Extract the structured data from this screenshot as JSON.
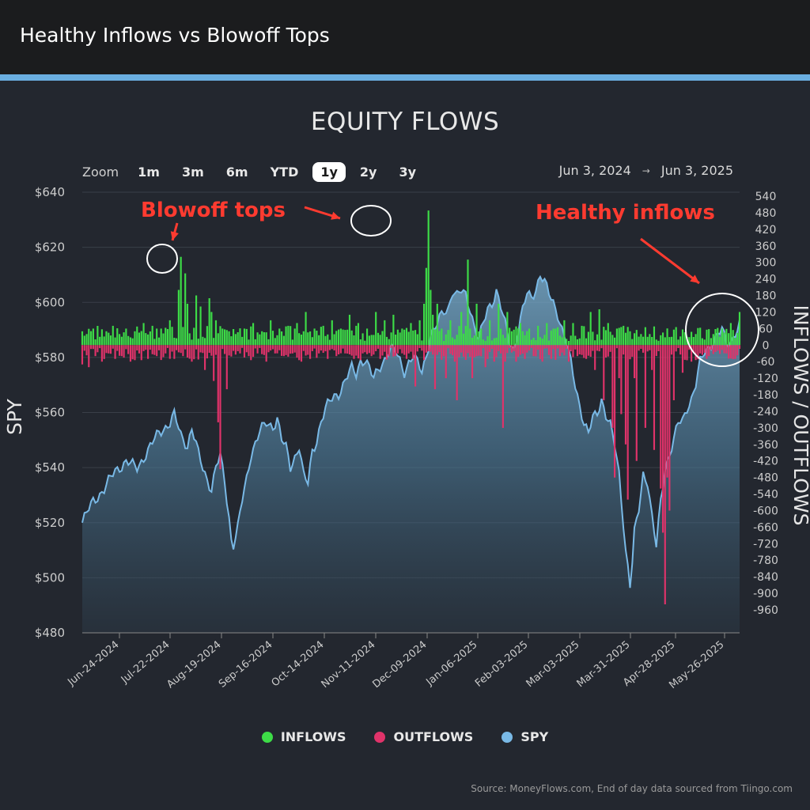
{
  "header": {
    "title": "Healthy Inflows vs Blowoff Tops"
  },
  "colors": {
    "accent": "#6aaee0",
    "inflow": "#3ddc47",
    "outflow": "#e0336a",
    "spy": "#79b9e6",
    "annotation": "#ff3b30"
  },
  "zoom": {
    "label": "Zoom",
    "buttons": [
      {
        "label": "1m",
        "active": false
      },
      {
        "label": "3m",
        "active": false
      },
      {
        "label": "6m",
        "active": false
      },
      {
        "label": "YTD",
        "active": false
      },
      {
        "label": "1y",
        "active": true
      },
      {
        "label": "2y",
        "active": false
      },
      {
        "label": "3y",
        "active": false
      }
    ]
  },
  "range": {
    "from": "Jun 3, 2024",
    "arrow": "→",
    "to": "Jun 3, 2025"
  },
  "legend": {
    "inflows": "INFLOWS",
    "outflows": "OUTFLOWS",
    "spy": "SPY"
  },
  "source": "Source: MoneyFlows.com, End of day data sourced from Tiingo.com",
  "chart_data": {
    "type": "bar",
    "title": "EQUITY FLOWS",
    "ylabel": "SPY",
    "y2label": "INFLOWS / OUTFLOWS",
    "ylim": [
      480,
      640
    ],
    "y2lim": [
      -960,
      540
    ],
    "yticks": [
      "$640",
      "$620",
      "$600",
      "$580",
      "$560",
      "$540",
      "$520",
      "$500",
      "$480"
    ],
    "y2ticks": [
      "540",
      "480",
      "420",
      "360",
      "300",
      "240",
      "180",
      "120",
      "60",
      "0",
      "-60",
      "-120",
      "-180",
      "-240",
      "-300",
      "-360",
      "-420",
      "-480",
      "-540",
      "-600",
      "-660",
      "-720",
      "-780",
      "-840",
      "-900",
      "-960"
    ],
    "xticks": [
      "Jun-24-2024",
      "Jul-22-2024",
      "Aug-19-2024",
      "Sep-16-2024",
      "Oct-14-2024",
      "Nov-11-2024",
      "Dec-09-2024",
      "Jan-06-2025",
      "Feb-03-2025",
      "Mar-03-2025",
      "Mar-31-2025",
      "Apr-28-2025",
      "May-26-2025"
    ],
    "spy_keypoints": [
      [
        0,
        520
      ],
      [
        5,
        528
      ],
      [
        10,
        532
      ],
      [
        15,
        539
      ],
      [
        20,
        542
      ],
      [
        25,
        540
      ],
      [
        30,
        546
      ],
      [
        35,
        553
      ],
      [
        40,
        556
      ],
      [
        42,
        559
      ],
      [
        45,
        552
      ],
      [
        48,
        548
      ],
      [
        50,
        554
      ],
      [
        53,
        545
      ],
      [
        55,
        540
      ],
      [
        57,
        536
      ],
      [
        59,
        532
      ],
      [
        61,
        540
      ],
      [
        63,
        544
      ],
      [
        65,
        535
      ],
      [
        67,
        522
      ],
      [
        68,
        514
      ],
      [
        69,
        512
      ],
      [
        71,
        518
      ],
      [
        73,
        528
      ],
      [
        75,
        536
      ],
      [
        77,
        545
      ],
      [
        79,
        549
      ],
      [
        81,
        553
      ],
      [
        84,
        556
      ],
      [
        87,
        555
      ],
      [
        89,
        558
      ],
      [
        91,
        550
      ],
      [
        93,
        547
      ],
      [
        95,
        540
      ],
      [
        97,
        544
      ],
      [
        99,
        548
      ],
      [
        101,
        537
      ],
      [
        103,
        534
      ],
      [
        105,
        546
      ],
      [
        107,
        550
      ],
      [
        109,
        557
      ],
      [
        111,
        561
      ],
      [
        113,
        564
      ],
      [
        115,
        566
      ],
      [
        117,
        567
      ],
      [
        119,
        570
      ],
      [
        121,
        573
      ],
      [
        123,
        576
      ],
      [
        125,
        574
      ],
      [
        127,
        579
      ],
      [
        129,
        579
      ],
      [
        131,
        576
      ],
      [
        133,
        572
      ],
      [
        135,
        576
      ],
      [
        137,
        578
      ],
      [
        139,
        581
      ],
      [
        141,
        583
      ],
      [
        143,
        582
      ],
      [
        145,
        579
      ],
      [
        147,
        575
      ],
      [
        149,
        578
      ],
      [
        151,
        580
      ],
      [
        153,
        578
      ],
      [
        155,
        575
      ],
      [
        157,
        581
      ],
      [
        159,
        588
      ],
      [
        161,
        590
      ],
      [
        163,
        594
      ],
      [
        165,
        597
      ],
      [
        167,
        598
      ],
      [
        169,
        604
      ],
      [
        171,
        602
      ],
      [
        173,
        604
      ],
      [
        175,
        603
      ],
      [
        177,
        598
      ],
      [
        179,
        591
      ],
      [
        181,
        586
      ],
      [
        183,
        592
      ],
      [
        185,
        598
      ],
      [
        187,
        600
      ],
      [
        189,
        604
      ],
      [
        191,
        598
      ],
      [
        193,
        592
      ],
      [
        195,
        586
      ],
      [
        197,
        583
      ],
      [
        199,
        590
      ],
      [
        201,
        597
      ],
      [
        203,
        603
      ],
      [
        205,
        602
      ],
      [
        207,
        605
      ],
      [
        209,
        610
      ],
      [
        211,
        607
      ],
      [
        213,
        603
      ],
      [
        215,
        600
      ],
      [
        217,
        596
      ],
      [
        219,
        590
      ],
      [
        221,
        585
      ],
      [
        223,
        578
      ],
      [
        225,
        570
      ],
      [
        227,
        563
      ],
      [
        229,
        556
      ],
      [
        231,
        552
      ],
      [
        233,
        558
      ],
      [
        235,
        560
      ],
      [
        237,
        565
      ],
      [
        239,
        559
      ],
      [
        241,
        555
      ],
      [
        243,
        548
      ],
      [
        245,
        538
      ],
      [
        247,
        520
      ],
      [
        248,
        510
      ],
      [
        249,
        504
      ],
      [
        250,
        497
      ],
      [
        251,
        505
      ],
      [
        252,
        516
      ],
      [
        254,
        525
      ],
      [
        256,
        538
      ],
      [
        258,
        535
      ],
      [
        260,
        522
      ],
      [
        262,
        511
      ],
      [
        264,
        528
      ],
      [
        266,
        540
      ],
      [
        268,
        545
      ],
      [
        270,
        550
      ],
      [
        272,
        556
      ],
      [
        274,
        557
      ],
      [
        276,
        562
      ],
      [
        278,
        565
      ],
      [
        280,
        570
      ],
      [
        282,
        578
      ],
      [
        284,
        582
      ],
      [
        286,
        584
      ],
      [
        288,
        586
      ],
      [
        290,
        588
      ],
      [
        292,
        590
      ],
      [
        294,
        585
      ],
      [
        296,
        586
      ],
      [
        298,
        589
      ],
      [
        300,
        592
      ]
    ],
    "flow_keypoints": [
      [
        0,
        50
      ],
      [
        0,
        -70
      ],
      [
        2,
        40
      ],
      [
        3,
        -80
      ],
      [
        5,
        60
      ],
      [
        6,
        -40
      ],
      [
        8,
        30
      ],
      [
        9,
        -60
      ],
      [
        11,
        50
      ],
      [
        12,
        -30
      ],
      [
        14,
        70
      ],
      [
        15,
        -50
      ],
      [
        17,
        40
      ],
      [
        18,
        -40
      ],
      [
        20,
        60
      ],
      [
        22,
        -60
      ],
      [
        24,
        50
      ],
      [
        26,
        -30
      ],
      [
        28,
        80
      ],
      [
        30,
        -50
      ],
      [
        32,
        70
      ],
      [
        34,
        -40
      ],
      [
        36,
        60
      ],
      [
        38,
        -30
      ],
      [
        40,
        90
      ],
      [
        42,
        -50
      ],
      [
        44,
        200
      ],
      [
        45,
        320
      ],
      [
        46,
        -40
      ],
      [
        47,
        260
      ],
      [
        48,
        150
      ],
      [
        50,
        -60
      ],
      [
        52,
        180
      ],
      [
        54,
        140
      ],
      [
        56,
        -90
      ],
      [
        58,
        170
      ],
      [
        59,
        120
      ],
      [
        60,
        -130
      ],
      [
        61,
        90
      ],
      [
        62,
        -280
      ],
      [
        63,
        -450
      ],
      [
        64,
        60
      ],
      [
        66,
        -160
      ],
      [
        67,
        50
      ],
      [
        70,
        40
      ],
      [
        72,
        -30
      ],
      [
        74,
        60
      ],
      [
        76,
        -40
      ],
      [
        78,
        80
      ],
      [
        80,
        -30
      ],
      [
        82,
        50
      ],
      [
        84,
        -60
      ],
      [
        86,
        90
      ],
      [
        88,
        -30
      ],
      [
        90,
        60
      ],
      [
        92,
        -40
      ],
      [
        94,
        70
      ],
      [
        96,
        -30
      ],
      [
        98,
        80
      ],
      [
        100,
        -60
      ],
      [
        102,
        120
      ],
      [
        104,
        -50
      ],
      [
        106,
        60
      ],
      [
        108,
        -30
      ],
      [
        110,
        70
      ],
      [
        112,
        -50
      ],
      [
        114,
        90
      ],
      [
        116,
        -40
      ],
      [
        118,
        60
      ],
      [
        120,
        -30
      ],
      [
        122,
        110
      ],
      [
        124,
        -50
      ],
      [
        126,
        80
      ],
      [
        128,
        -30
      ],
      [
        130,
        60
      ],
      [
        132,
        -40
      ],
      [
        134,
        120
      ],
      [
        136,
        -50
      ],
      [
        138,
        90
      ],
      [
        140,
        -40
      ],
      [
        142,
        110
      ],
      [
        144,
        -30
      ],
      [
        146,
        60
      ],
      [
        148,
        -50
      ],
      [
        150,
        80
      ],
      [
        152,
        -150
      ],
      [
        154,
        90
      ],
      [
        155,
        -20
      ],
      [
        156,
        150
      ],
      [
        157,
        280
      ],
      [
        158,
        488
      ],
      [
        159,
        200
      ],
      [
        160,
        110
      ],
      [
        161,
        -160
      ],
      [
        162,
        150
      ],
      [
        164,
        60
      ],
      [
        166,
        -120
      ],
      [
        168,
        90
      ],
      [
        170,
        -60
      ],
      [
        171,
        -200
      ],
      [
        173,
        120
      ],
      [
        175,
        70
      ],
      [
        176,
        310
      ],
      [
        177,
        60
      ],
      [
        178,
        -120
      ],
      [
        180,
        150
      ],
      [
        182,
        60
      ],
      [
        184,
        -80
      ],
      [
        186,
        90
      ],
      [
        188,
        -60
      ],
      [
        190,
        150
      ],
      [
        192,
        -300
      ],
      [
        193,
        -60
      ],
      [
        194,
        120
      ],
      [
        196,
        50
      ],
      [
        198,
        -60
      ],
      [
        200,
        80
      ],
      [
        202,
        -50
      ],
      [
        204,
        60
      ],
      [
        206,
        -40
      ],
      [
        208,
        70
      ],
      [
        210,
        -60
      ],
      [
        212,
        80
      ],
      [
        214,
        -50
      ],
      [
        216,
        60
      ],
      [
        218,
        -40
      ],
      [
        220,
        90
      ],
      [
        222,
        -60
      ],
      [
        224,
        80
      ],
      [
        226,
        -40
      ],
      [
        228,
        70
      ],
      [
        230,
        -50
      ],
      [
        232,
        120
      ],
      [
        234,
        -90
      ],
      [
        236,
        130
      ],
      [
        238,
        -200
      ],
      [
        240,
        80
      ],
      [
        242,
        -300
      ],
      [
        243,
        -480
      ],
      [
        244,
        60
      ],
      [
        245,
        -120
      ],
      [
        246,
        -250
      ],
      [
        247,
        70
      ],
      [
        248,
        -360
      ],
      [
        249,
        -560
      ],
      [
        250,
        50
      ],
      [
        252,
        -120
      ],
      [
        253,
        -420
      ],
      [
        255,
        40
      ],
      [
        257,
        -300
      ],
      [
        258,
        30
      ],
      [
        260,
        -90
      ],
      [
        261,
        -380
      ],
      [
        262,
        20
      ],
      [
        264,
        -520
      ],
      [
        265,
        -680
      ],
      [
        266,
        -940
      ],
      [
        267,
        -480
      ],
      [
        268,
        -600
      ],
      [
        269,
        30
      ],
      [
        270,
        -200
      ],
      [
        272,
        20
      ],
      [
        274,
        -100
      ],
      [
        276,
        30
      ],
      [
        278,
        -60
      ],
      [
        280,
        40
      ],
      [
        282,
        -30
      ],
      [
        284,
        20
      ],
      [
        286,
        -40
      ],
      [
        288,
        40
      ],
      [
        290,
        -20
      ],
      [
        292,
        60
      ],
      [
        294,
        -30
      ],
      [
        296,
        80
      ],
      [
        298,
        -50
      ],
      [
        300,
        120
      ]
    ],
    "annotations": [
      {
        "text": "Blowoff tops"
      },
      {
        "text": "Healthy inflows"
      }
    ]
  }
}
